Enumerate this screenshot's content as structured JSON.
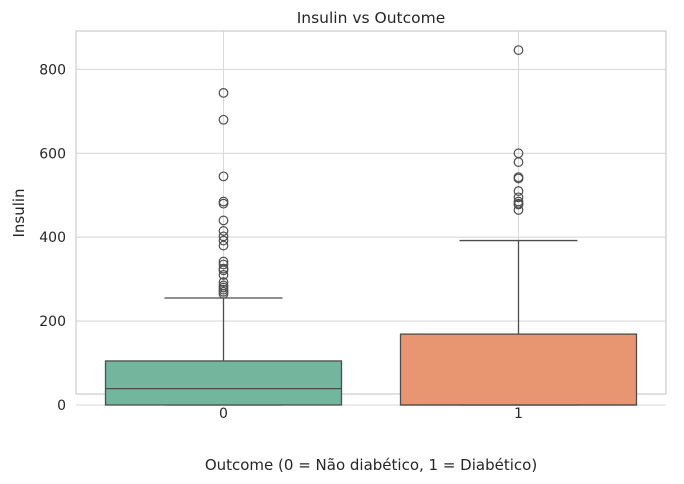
{
  "chart_data": {
    "type": "boxplot",
    "title": "Insulin vs Outcome",
    "xlabel": "Outcome (0 = Não diabético, 1 = Diabético)",
    "ylabel": "Insulin",
    "ylim": [
      -40,
      885
    ],
    "yticks": [
      0,
      200,
      400,
      600,
      800
    ],
    "grid": true,
    "categories": [
      "0",
      "1"
    ],
    "boxes": [
      {
        "category": "0",
        "color": "#72b69e",
        "whisker_low": 0,
        "q1": 0,
        "median": 39,
        "q3": 105,
        "whisker_high": 255,
        "outliers": [
          744,
          680,
          545,
          485,
          480,
          440,
          415,
          402,
          392,
          380,
          342,
          335,
          325,
          321,
          310,
          293,
          285,
          280,
          275,
          270,
          265
        ]
      },
      {
        "category": "1",
        "color": "#e89672",
        "whisker_low": 0,
        "q1": 0,
        "median": 0,
        "q3": 169,
        "whisker_high": 392,
        "outliers": [
          846,
          600,
          579,
          543,
          540,
          510,
          495,
          485,
          480,
          478,
          465
        ]
      }
    ]
  }
}
